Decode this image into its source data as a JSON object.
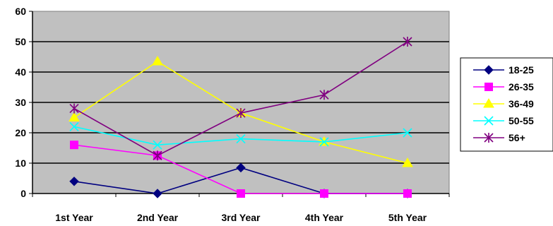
{
  "chart_data": {
    "type": "line",
    "title": "",
    "xlabel": "",
    "ylabel": "",
    "categories": [
      "1st Year",
      "2nd Year",
      "3rd Year",
      "4th Year",
      "5th Year"
    ],
    "ylim": [
      0,
      60
    ],
    "yticks": [
      "0",
      "10",
      "20",
      "30",
      "40",
      "50",
      "60"
    ],
    "grid": true,
    "plot_background": "#c0c0c0",
    "legend_position": "right",
    "series": [
      {
        "name": "18-25",
        "values": [
          4,
          0,
          8.5,
          0,
          0
        ],
        "color": "#000080",
        "marker": "diamond"
      },
      {
        "name": "26-35",
        "values": [
          16,
          12.5,
          0,
          0,
          0
        ],
        "color": "#ff00ff",
        "marker": "square"
      },
      {
        "name": "36-49",
        "values": [
          25,
          43.5,
          26.5,
          17,
          10
        ],
        "color": "#ffff00",
        "marker": "triangle"
      },
      {
        "name": "50-55",
        "values": [
          22,
          16,
          18,
          17,
          20
        ],
        "color": "#00ffff",
        "marker": "x"
      },
      {
        "name": "56+",
        "values": [
          28,
          12.5,
          26.5,
          32.5,
          50
        ],
        "color": "#800080",
        "marker": "star"
      }
    ]
  }
}
